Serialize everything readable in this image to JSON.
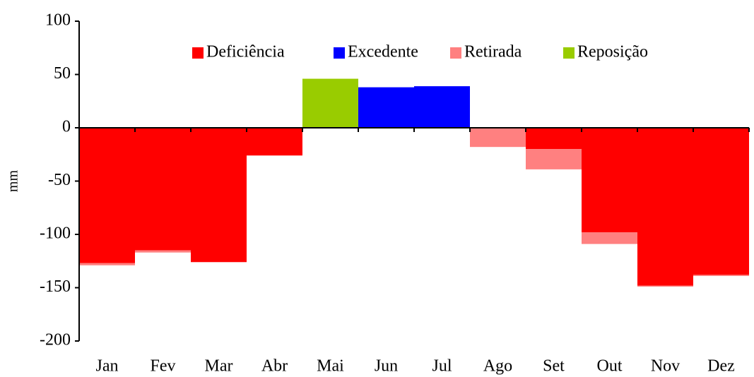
{
  "chart_data": {
    "type": "stacked_bar",
    "y_label": "mm",
    "categories": [
      "Jan",
      "Fev",
      "Mar",
      "Abr",
      "Mai",
      "Jun",
      "Jul",
      "Ago",
      "Set",
      "Out",
      "Nov",
      "Dez"
    ],
    "series": [
      {
        "name": "Deficiência",
        "color": "#ff0000",
        "values": [
          -127,
          -115,
          -126,
          -26,
          0,
          0,
          0,
          0,
          -20,
          -98,
          -148,
          -138
        ]
      },
      {
        "name": "Excedente",
        "color": "#0000ff",
        "values": [
          0,
          0,
          0,
          0,
          0,
          38,
          39,
          0,
          0,
          0,
          0,
          0
        ]
      },
      {
        "name": "Retirada",
        "color": "#ff8080",
        "values": [
          -2,
          -2,
          0,
          0,
          0,
          0,
          0,
          -18,
          -19,
          -11,
          -1,
          -1
        ]
      },
      {
        "name": "Reposição",
        "color": "#99cc00",
        "values": [
          0,
          0,
          0,
          0,
          46,
          0,
          0,
          0,
          0,
          0,
          0,
          0
        ]
      }
    ],
    "ylim": [
      -200,
      100
    ],
    "yticks": [
      -200,
      -150,
      -100,
      -50,
      0,
      50,
      100
    ],
    "legend": "top",
    "grid": false
  }
}
